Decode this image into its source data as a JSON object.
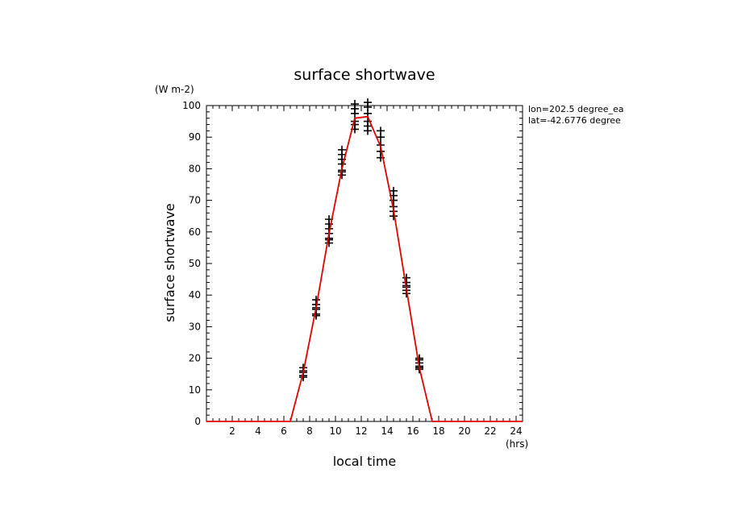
{
  "chart_data": {
    "type": "line",
    "title": "surface shortwave",
    "xlabel": "local time",
    "ylabel": "surface shortwave",
    "x_unit": "(hrs)",
    "y_unit": "(W m-2)",
    "xlim": [
      0,
      24.5
    ],
    "ylim": [
      0,
      100
    ],
    "x_ticks": [
      2,
      4,
      6,
      8,
      10,
      12,
      14,
      16,
      18,
      20,
      22,
      24
    ],
    "y_ticks": [
      0,
      10,
      20,
      30,
      40,
      50,
      60,
      70,
      80,
      90,
      100
    ],
    "annotations": [
      "lon=202.5 degree_ea",
      "lat=-42.6776 degree"
    ],
    "colors": {
      "line": "#e00000",
      "markers": "#000000"
    },
    "series": [
      {
        "type": "line",
        "x": [
          0,
          0.5,
          1.5,
          2.5,
          3.5,
          4.5,
          5.5,
          6.5,
          7.5,
          8.5,
          9.5,
          10.5,
          11.5,
          12.5,
          13.5,
          14.5,
          15.5,
          16.5,
          17.5,
          18.5,
          19.5,
          20.5,
          21.5,
          22.5,
          23.5,
          24.5
        ],
        "y": [
          0,
          0,
          0,
          0,
          0,
          0,
          0,
          0,
          15.5,
          36,
          59.5,
          80,
          96,
          96.5,
          87,
          67,
          42,
          17,
          0,
          0,
          0,
          0,
          0,
          0,
          0,
          0
        ]
      },
      {
        "type": "scatter",
        "marker": "+",
        "x": [
          7.5,
          7.5,
          7.5,
          7.5,
          7.5,
          8.5,
          8.5,
          8.5,
          8.5,
          8.5,
          8.5,
          9.5,
          9.5,
          9.5,
          9.5,
          9.5,
          9.5,
          9.5,
          10.5,
          10.5,
          10.5,
          10.5,
          10.5,
          10.5,
          10.5,
          11.5,
          11.5,
          11.5,
          11.5,
          11.5,
          11.5,
          12.5,
          12.5,
          12.5,
          12.5,
          12.5,
          12.5,
          13.5,
          13.5,
          13.5,
          13.5,
          13.5,
          14.5,
          14.5,
          14.5,
          14.5,
          14.5,
          14.5,
          15.5,
          15.5,
          15.5,
          15.5,
          15.5,
          15.5,
          16.5,
          16.5,
          16.5,
          16.5,
          16.5,
          16.5
        ],
        "y": [
          14.5,
          15.5,
          16,
          17,
          14,
          34,
          35.5,
          37,
          38.5,
          33.5,
          36,
          56.5,
          58,
          59.5,
          61,
          62.5,
          64,
          57.5,
          78,
          79.5,
          81.5,
          83,
          84.5,
          86,
          79,
          92.5,
          94,
          97.5,
          99,
          100.5,
          95,
          92,
          93.5,
          95,
          97.5,
          99.5,
          101,
          83.5,
          85.5,
          87.5,
          90,
          92,
          65,
          66.5,
          68,
          70,
          71.5,
          73,
          40.5,
          41.5,
          43,
          44,
          45.5,
          42.5,
          16.5,
          17.5,
          18.5,
          19.5,
          20,
          17
        ]
      }
    ]
  }
}
